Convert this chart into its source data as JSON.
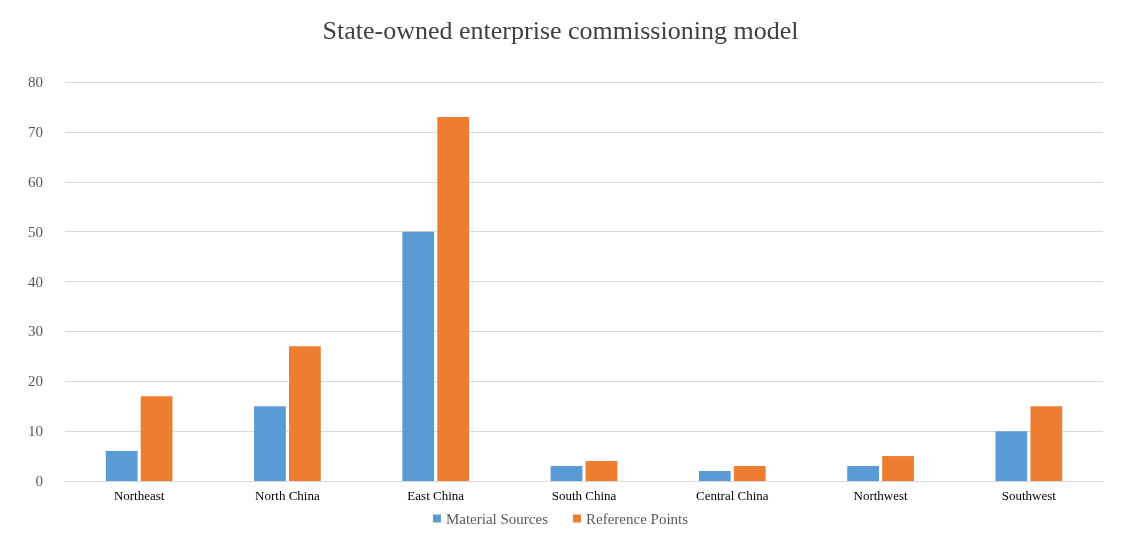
{
  "chart_data": {
    "type": "bar",
    "title": "State-owned enterprise commissioning model",
    "categories": [
      "Northeast",
      "North China",
      "East China",
      "South China",
      "Central China",
      "Northwest",
      "Southwest"
    ],
    "series": [
      {
        "name": "Material Sources",
        "color": "#5b9bd5",
        "values": [
          6,
          15,
          50,
          3,
          2,
          3,
          10
        ]
      },
      {
        "name": "Reference Points",
        "color": "#ed7d31",
        "values": [
          17,
          27,
          73,
          4,
          3,
          5,
          15
        ]
      }
    ],
    "ylim": [
      0,
      80
    ],
    "yticks": [
      0,
      10,
      20,
      30,
      40,
      50,
      60,
      70,
      80
    ],
    "grid": "y",
    "legend": "bottom"
  }
}
